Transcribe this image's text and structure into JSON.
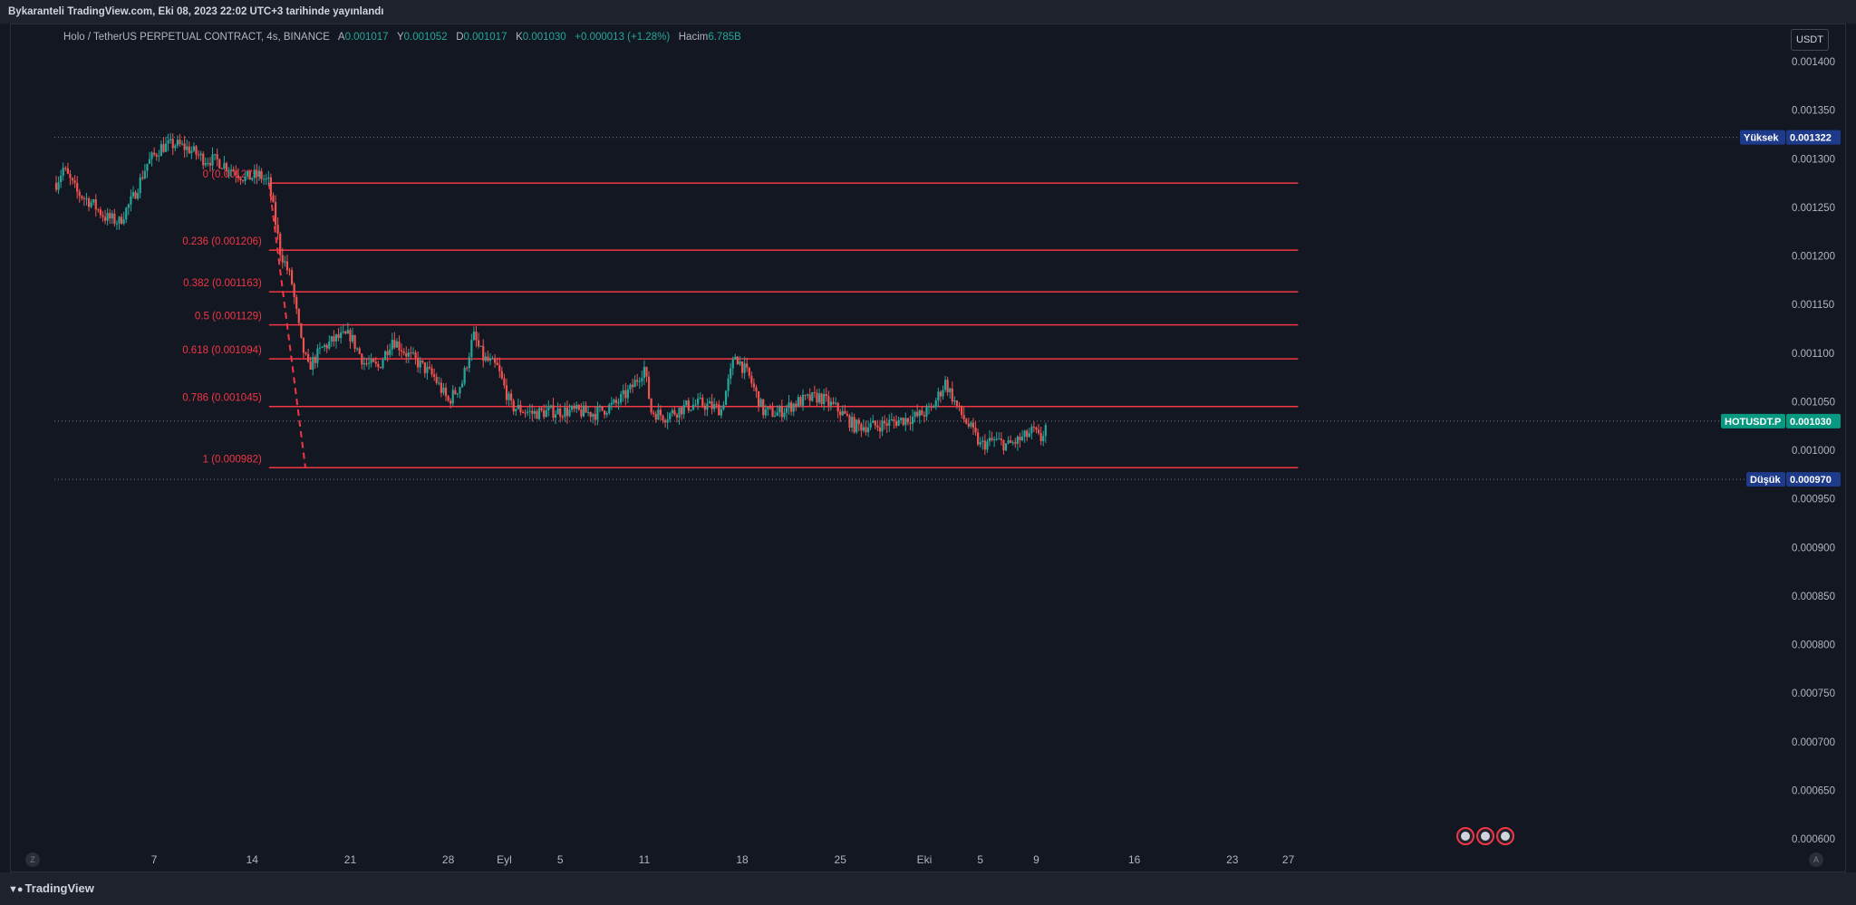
{
  "header": {
    "published_text": "Bykaranteli TradingView.com, Eki 08, 2023 22:02 UTC+3 tarihinde yayınlandı"
  },
  "legend": {
    "symbol": "Holo / TetherUS PERPETUAL CONTRACT, 4s, BINANCE",
    "open_label": "A",
    "open": "0.001017",
    "high_label": "Y",
    "high": "0.001052",
    "low_label": "D",
    "low": "0.001017",
    "close_label": "K",
    "close": "0.001030",
    "change": "+0.000013 (+1.28%)",
    "volume_label": "Hacim",
    "volume": "6.785B"
  },
  "currency_button": "USDT",
  "footer": {
    "brand": "TradingView",
    "zoom_left": "Z",
    "auto_right": "A"
  },
  "colors": {
    "up": "#26a69a",
    "down": "#ef5350",
    "fib": "#f23645",
    "background": "#131722",
    "axis_text": "#b2b5be"
  },
  "chart_data": {
    "type": "candlestick",
    "y_axis": {
      "min": 0.0006,
      "max": 0.0014,
      "ticks": [
        "0.001400",
        "0.001350",
        "0.001300",
        "0.001250",
        "0.001200",
        "0.001150",
        "0.001100",
        "0.001050",
        "0.001000",
        "0.000950",
        "0.000900",
        "0.000850",
        "0.000800",
        "0.000750",
        "0.000700",
        "0.000650",
        "0.000600"
      ]
    },
    "x_axis": {
      "labels": [
        {
          "text": "7",
          "day": 7
        },
        {
          "text": "14",
          "day": 14
        },
        {
          "text": "21",
          "day": 21
        },
        {
          "text": "28",
          "day": 28
        },
        {
          "text": "Eyl",
          "day": 32
        },
        {
          "text": "5",
          "day": 36
        },
        {
          "text": "11",
          "day": 42
        },
        {
          "text": "18",
          "day": 49
        },
        {
          "text": "25",
          "day": 56
        },
        {
          "text": "Eki",
          "day": 62
        },
        {
          "text": "5",
          "day": 66
        },
        {
          "text": "9",
          "day": 70
        },
        {
          "text": "16",
          "day": 77
        },
        {
          "text": "23",
          "day": 84
        },
        {
          "text": "27",
          "day": 88
        }
      ]
    },
    "price_markers": [
      {
        "label": "Yüksek",
        "value": "0.001322",
        "price": 0.001322,
        "bg": "#1e3a8a"
      },
      {
        "label": "HOTUSDT.P",
        "value": "0.001030",
        "price": 0.00103,
        "bg": "#089981"
      },
      {
        "label": "Düşük",
        "value": "0.000970",
        "price": 0.00097,
        "bg": "#1e3a8a"
      }
    ],
    "fib_levels": [
      {
        "label": "0 (0.001275)",
        "price": 0.001275
      },
      {
        "label": "0.236 (0.001206)",
        "price": 0.001206
      },
      {
        "label": "0.382 (0.001163)",
        "price": 0.001163
      },
      {
        "label": "0.5 (0.001129)",
        "price": 0.001129
      },
      {
        "label": "0.618 (0.001094)",
        "price": 0.001094
      },
      {
        "label": "0.786 (0.001045)",
        "price": 0.001045
      },
      {
        "label": "1 (0.000982)",
        "price": 0.000982
      }
    ],
    "fib_range": {
      "start_day": 15.2,
      "end_day": 88.7
    },
    "trend_line": {
      "from": {
        "day": 15.2,
        "price": 0.001275
      },
      "to": {
        "day": 17.8,
        "price": 0.000982
      }
    },
    "price_path": [
      [
        0,
        0.001275
      ],
      [
        0.5,
        0.00129
      ],
      [
        1.5,
        0.001265
      ],
      [
        2.5,
        0.001255
      ],
      [
        3.5,
        0.00124
      ],
      [
        4.5,
        0.001235
      ],
      [
        5.5,
        0.00126
      ],
      [
        6.5,
        0.001295
      ],
      [
        7.5,
        0.001312
      ],
      [
        8.5,
        0.001315
      ],
      [
        9.5,
        0.00131
      ],
      [
        10.5,
        0.0013
      ],
      [
        11.5,
        0.001298
      ],
      [
        12.5,
        0.00129
      ],
      [
        13.5,
        0.00128
      ],
      [
        14.5,
        0.001283
      ],
      [
        15.2,
        0.001275
      ],
      [
        16.0,
        0.001205
      ],
      [
        16.8,
        0.001175
      ],
      [
        17.5,
        0.00111
      ],
      [
        18.0,
        0.001085
      ],
      [
        19,
        0.001105
      ],
      [
        20,
        0.001115
      ],
      [
        21,
        0.001118
      ],
      [
        22,
        0.00109
      ],
      [
        23,
        0.001085
      ],
      [
        24,
        0.001115
      ],
      [
        25,
        0.0011
      ],
      [
        26,
        0.001088
      ],
      [
        27,
        0.001075
      ],
      [
        28,
        0.00105
      ],
      [
        29,
        0.00107
      ],
      [
        29.8,
        0.001118
      ],
      [
        30.5,
        0.001095
      ],
      [
        31.5,
        0.001085
      ],
      [
        32.5,
        0.001045
      ],
      [
        34,
        0.001038
      ],
      [
        35.5,
        0.00104
      ],
      [
        37,
        0.00104
      ],
      [
        38.5,
        0.001038
      ],
      [
        40,
        0.001048
      ],
      [
        41,
        0.001062
      ],
      [
        42,
        0.001085
      ],
      [
        42.5,
        0.00104
      ],
      [
        43.5,
        0.001035
      ],
      [
        45,
        0.001045
      ],
      [
        46,
        0.001048
      ],
      [
        47.5,
        0.001042
      ],
      [
        48.5,
        0.001098
      ],
      [
        49.5,
        0.001075
      ],
      [
        50.5,
        0.00104
      ],
      [
        51.5,
        0.001038
      ],
      [
        53,
        0.00105
      ],
      [
        54.5,
        0.001055
      ],
      [
        56,
        0.00104
      ],
      [
        57,
        0.001025
      ],
      [
        58.5,
        0.001025
      ],
      [
        60,
        0.00103
      ],
      [
        61.5,
        0.001035
      ],
      [
        62.5,
        0.001042
      ],
      [
        63.5,
        0.00107
      ],
      [
        64.5,
        0.00104
      ],
      [
        65.5,
        0.001018
      ],
      [
        66,
        0.001005
      ],
      [
        67,
        0.00101
      ],
      [
        68,
        0.001005
      ],
      [
        69,
        0.001012
      ],
      [
        69.8,
        0.00102
      ],
      [
        70.3,
        0.00101
      ],
      [
        70.8,
        0.00103
      ]
    ],
    "events_count": 3
  }
}
